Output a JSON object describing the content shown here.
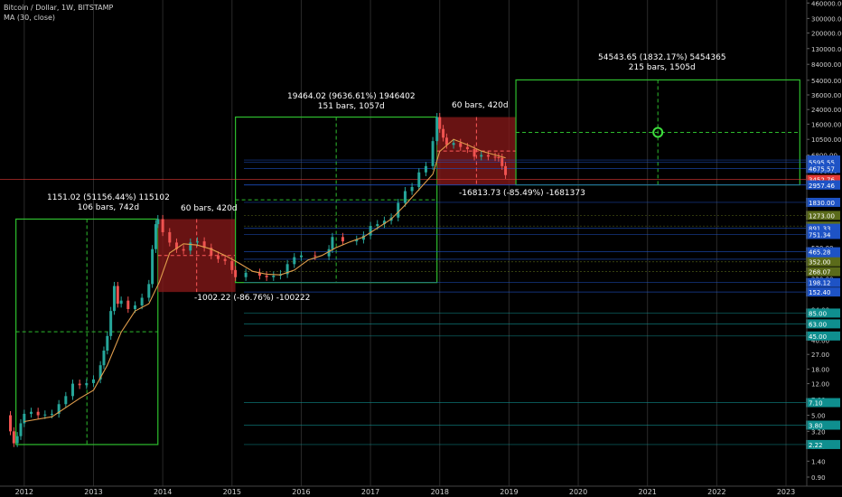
{
  "header": {
    "symbol_line": "Bitcoin / Dollar, 1W, BITSTAMP",
    "indicator_line": "MA (30, close)"
  },
  "colors": {
    "background": "#000000",
    "up": "#26a69a",
    "down": "#ef5350",
    "ma": "#e09d4c",
    "box_green": "#2ebd2e",
    "box_red": "#8b1a1a",
    "grid": "#2a2a2a",
    "price_line": "#e53935"
  },
  "chart_data": {
    "type": "line",
    "title": "Bitcoin / Dollar, 1W, BITSTAMP",
    "yscale": "log",
    "ylim": [
      0.7,
      500000
    ],
    "xlim": [
      2011.65,
      2023.3
    ],
    "x_ticks": [
      "2012",
      "2013",
      "2014",
      "2015",
      "2016",
      "2017",
      "2018",
      "2019",
      "2020",
      "2021",
      "2022",
      "2023"
    ],
    "y_ticks": [
      "460000.00",
      "300000.00",
      "200000.00",
      "130000.00",
      "84000.00",
      "54000.00",
      "36000.00",
      "24000.00",
      "16000.00",
      "10500.00",
      "6800.00",
      "4400.00",
      "2900.00",
      "1900.00",
      "1230.00",
      "800.00",
      "520.00",
      "340.00",
      "220.00",
      "145.00",
      "94.00",
      "61.00",
      "40.00",
      "27.00",
      "18.00",
      "12.00",
      "7.80",
      "5.00",
      "3.20",
      "2.10",
      "1.40",
      "0.90"
    ],
    "price_series": {
      "name": "Bitcoin / Dollar",
      "x": [
        2011.75,
        2011.8,
        2011.85,
        2011.9,
        2011.95,
        2012.0,
        2012.1,
        2012.2,
        2012.3,
        2012.4,
        2012.5,
        2012.6,
        2012.7,
        2012.8,
        2012.9,
        2013.0,
        2013.1,
        2013.15,
        2013.2,
        2013.25,
        2013.3,
        2013.35,
        2013.4,
        2013.5,
        2013.6,
        2013.7,
        2013.8,
        2013.85,
        2013.9,
        2013.93,
        2014.0,
        2014.1,
        2014.2,
        2014.3,
        2014.4,
        2014.5,
        2014.6,
        2014.7,
        2014.8,
        2014.9,
        2015.0,
        2015.05,
        2015.2,
        2015.4,
        2015.5,
        2015.6,
        2015.7,
        2015.8,
        2015.9,
        2016.0,
        2016.2,
        2016.4,
        2016.45,
        2016.6,
        2016.8,
        2016.9,
        2017.0,
        2017.1,
        2017.2,
        2017.3,
        2017.4,
        2017.5,
        2017.6,
        2017.7,
        2017.8,
        2017.9,
        2017.96,
        2018.0,
        2018.05,
        2018.1,
        2018.2,
        2018.3,
        2018.4,
        2018.5,
        2018.6,
        2018.7,
        2018.8,
        2018.85,
        2018.9,
        2018.95
      ],
      "y": [
        5.0,
        3.2,
        2.3,
        2.8,
        4.0,
        5.2,
        5.5,
        5.0,
        5.1,
        5.2,
        6.8,
        8.5,
        12.0,
        11.5,
        12.2,
        13.5,
        20.0,
        30.0,
        45.0,
        90.0,
        180.0,
        110.0,
        120.0,
        95.0,
        105.0,
        130.0,
        190.0,
        500.0,
        1000.0,
        1150.0,
        800.0,
        600.0,
        500.0,
        480.0,
        600.0,
        620.0,
        520.0,
        420.0,
        380.0,
        360.0,
        280.0,
        230.0,
        260.0,
        240.0,
        230.0,
        240.0,
        250.0,
        330.0,
        400.0,
        420.0,
        410.0,
        500.0,
        700.0,
        620.0,
        650.0,
        730.0,
        950.0,
        1000.0,
        1100.0,
        1200.0,
        1800.0,
        2500.0,
        2800.0,
        4200.0,
        5000.0,
        10000.0,
        19464.0,
        14000.0,
        11000.0,
        9000.0,
        9500.0,
        8500.0,
        8000.0,
        6500.0,
        6800.0,
        6500.0,
        6400.0,
        6300.0,
        5000.0,
        3900.0
      ]
    },
    "ma_series": {
      "x": [
        2012.0,
        2012.4,
        2012.8,
        2013.0,
        2013.2,
        2013.4,
        2013.6,
        2013.8,
        2013.95,
        2014.1,
        2014.3,
        2014.5,
        2014.7,
        2014.9,
        2015.1,
        2015.3,
        2015.5,
        2015.7,
        2015.9,
        2016.1,
        2016.3,
        2016.5,
        2016.7,
        2016.9,
        2017.1,
        2017.3,
        2017.5,
        2017.7,
        2017.9,
        2018.0,
        2018.2,
        2018.4,
        2018.6,
        2018.8,
        2018.95
      ],
      "y": [
        4.2,
        4.8,
        8.0,
        10.0,
        20.0,
        50.0,
        90.0,
        110.0,
        200.0,
        450.0,
        580.0,
        560.0,
        500.0,
        420.0,
        340.0,
        270.0,
        250.0,
        245.0,
        280.0,
        370.0,
        420.0,
        520.0,
        610.0,
        700.0,
        900.0,
        1150.0,
        1700.0,
        2600.0,
        4000.0,
        7500.0,
        10500.0,
        9000.0,
        7600.0,
        6800.0,
        6300.0
      ]
    },
    "last_price": "3452.76",
    "axis_labels": [
      {
        "text": "5920.72",
        "bg": "#1e53c5"
      },
      {
        "text": "5595.55",
        "bg": "#1e53c5"
      },
      {
        "text": "4675.57",
        "bg": "#1e53c5"
      },
      {
        "text": "3452.76",
        "bg": "#e53935"
      },
      {
        "text": "2972.01",
        "bg": "#1e53c5"
      },
      {
        "text": "2957.46",
        "bg": "#1e53c5"
      },
      {
        "text": "1830.00",
        "bg": "#1e53c5"
      },
      {
        "text": "1273.00",
        "bg": "#5b6b1a"
      },
      {
        "text": "948.00",
        "bg": "#5b6b1a"
      },
      {
        "text": "891.33",
        "bg": "#1e53c5"
      },
      {
        "text": "751.34",
        "bg": "#1e53c5"
      },
      {
        "text": "465.28",
        "bg": "#1e53c5"
      },
      {
        "text": "377.87",
        "bg": "#1e53c5"
      },
      {
        "text": "352.00",
        "bg": "#5b6b1a"
      },
      {
        "text": "268.07",
        "bg": "#5b6b1a"
      },
      {
        "text": "198.12",
        "bg": "#1e53c5"
      },
      {
        "text": "152.40",
        "bg": "#1e53c5"
      },
      {
        "text": "85.00",
        "bg": "#0f8f8f"
      },
      {
        "text": "63.00",
        "bg": "#0f8f8f"
      },
      {
        "text": "45.00",
        "bg": "#0f8f8f"
      },
      {
        "text": "7.10",
        "bg": "#0f8f8f"
      },
      {
        "text": "3.80",
        "bg": "#0f8f8f"
      },
      {
        "text": "2.22",
        "bg": "#0f8f8f"
      }
    ],
    "annotations": [
      {
        "line1": "1151.02 (51156.44%) 115102",
        "line2": "106 bars, 742d"
      },
      {
        "line1": "60 bars, 420d",
        "line2": ""
      },
      {
        "line1": "-1002.22 (-86.76%) -100222",
        "line2": ""
      },
      {
        "line1": "19464.02 (9636.61%) 1946402",
        "line2": "151 bars, 1057d"
      },
      {
        "line1": "60 bars, 420d",
        "line2": ""
      },
      {
        "line1": "-16813.73 (-85.49%) -1681373",
        "line2": ""
      },
      {
        "line1": "54543.65 (1832.17%) 5454365",
        "line2": "215 bars, 1505d"
      }
    ],
    "measure_boxes": [
      {
        "kind": "up",
        "x": [
          2011.88,
          2013.93
        ],
        "y": [
          2.22,
          1151.02
        ]
      },
      {
        "kind": "down",
        "x": [
          2013.93,
          2015.05
        ],
        "y": [
          152.4,
          1151.02
        ]
      },
      {
        "kind": "up",
        "x": [
          2015.05,
          2017.96
        ],
        "y": [
          198.12,
          19464.02
        ]
      },
      {
        "kind": "down",
        "x": [
          2017.96,
          2019.1
        ],
        "y": [
          2972.01,
          19464.02
        ]
      },
      {
        "kind": "up",
        "x": [
          2019.1,
          2023.2
        ],
        "y": [
          2972.01,
          54543.65
        ]
      }
    ]
  }
}
